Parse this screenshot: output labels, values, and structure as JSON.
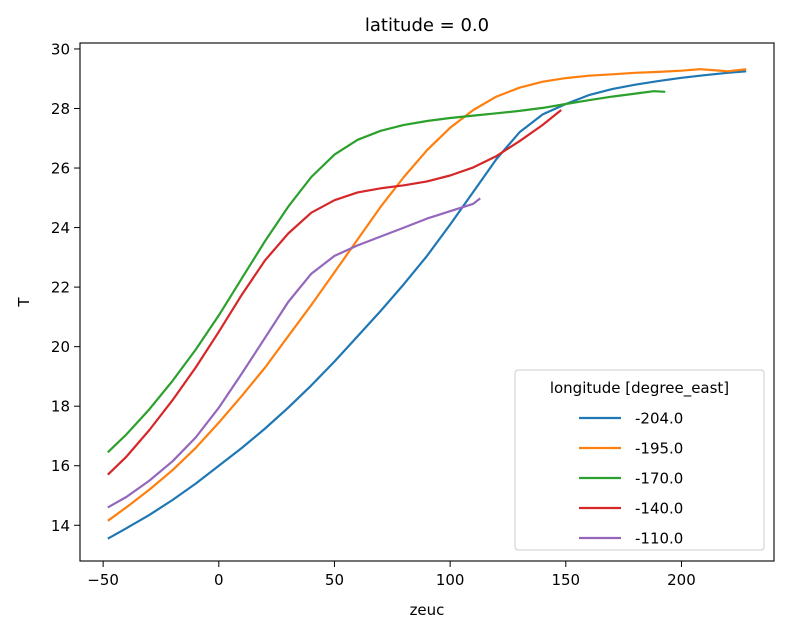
{
  "chart_data": {
    "type": "line",
    "title": "latitude = 0.0",
    "xlabel": "zeuc",
    "ylabel": "T",
    "xlim": [
      -60,
      240
    ],
    "ylim": [
      12.8,
      30.2
    ],
    "xticks": [
      -50,
      0,
      50,
      100,
      150,
      200
    ],
    "xtick_labels": [
      "−50",
      "0",
      "50",
      "100",
      "150",
      "200"
    ],
    "yticks": [
      14,
      16,
      18,
      20,
      22,
      24,
      26,
      28,
      30
    ],
    "ytick_labels": [
      "14",
      "16",
      "18",
      "20",
      "22",
      "24",
      "26",
      "28",
      "30"
    ],
    "grid": false,
    "legend": {
      "title": "longitude [degree_east]",
      "placement": "lower-right"
    },
    "series": [
      {
        "name": "-204.0",
        "color": "#1f77b4",
        "x": [
          -48,
          -40,
          -30,
          -20,
          -10,
          0,
          10,
          20,
          30,
          40,
          50,
          60,
          70,
          80,
          90,
          100,
          110,
          120,
          130,
          140,
          150,
          160,
          170,
          180,
          190,
          200,
          210,
          220,
          228
        ],
        "y": [
          13.55,
          13.9,
          14.35,
          14.85,
          15.4,
          16.0,
          16.6,
          17.25,
          17.95,
          18.7,
          19.5,
          20.35,
          21.2,
          22.1,
          23.05,
          24.1,
          25.2,
          26.3,
          27.2,
          27.8,
          28.15,
          28.45,
          28.65,
          28.8,
          28.92,
          29.03,
          29.12,
          29.2,
          29.25
        ]
      },
      {
        "name": "-195.0",
        "color": "#ff7f0e",
        "x": [
          -48,
          -40,
          -30,
          -20,
          -10,
          0,
          10,
          20,
          30,
          40,
          50,
          60,
          70,
          80,
          90,
          100,
          110,
          120,
          130,
          140,
          150,
          160,
          170,
          180,
          190,
          200,
          208,
          215,
          220,
          228
        ],
        "y": [
          14.15,
          14.6,
          15.2,
          15.85,
          16.6,
          17.45,
          18.35,
          19.3,
          20.35,
          21.4,
          22.5,
          23.6,
          24.7,
          25.7,
          26.6,
          27.35,
          27.95,
          28.4,
          28.7,
          28.9,
          29.02,
          29.1,
          29.15,
          29.2,
          29.23,
          29.27,
          29.32,
          29.28,
          29.25,
          29.32
        ]
      },
      {
        "name": "-170.0",
        "color": "#2ca02c",
        "x": [
          -48,
          -40,
          -30,
          -20,
          -10,
          0,
          10,
          20,
          30,
          40,
          50,
          60,
          70,
          80,
          90,
          100,
          110,
          120,
          130,
          140,
          150,
          160,
          170,
          180,
          188,
          193
        ],
        "y": [
          16.45,
          17.05,
          17.9,
          18.85,
          19.9,
          21.05,
          22.3,
          23.55,
          24.7,
          25.7,
          26.45,
          26.95,
          27.25,
          27.45,
          27.58,
          27.68,
          27.76,
          27.84,
          27.92,
          28.02,
          28.15,
          28.28,
          28.4,
          28.5,
          28.58,
          28.56
        ]
      },
      {
        "name": "-140.0",
        "color": "#d62728",
        "x": [
          -48,
          -40,
          -30,
          -20,
          -10,
          0,
          10,
          20,
          30,
          40,
          50,
          60,
          70,
          80,
          90,
          100,
          110,
          120,
          130,
          140,
          148
        ],
        "y": [
          15.7,
          16.3,
          17.2,
          18.2,
          19.3,
          20.5,
          21.75,
          22.9,
          23.8,
          24.5,
          24.92,
          25.18,
          25.32,
          25.42,
          25.55,
          25.75,
          26.02,
          26.4,
          26.9,
          27.45,
          27.95
        ]
      },
      {
        "name": "-110.0",
        "color": "#9467bd",
        "x": [
          -48,
          -40,
          -30,
          -20,
          -10,
          0,
          10,
          20,
          30,
          40,
          50,
          60,
          70,
          80,
          90,
          100,
          110,
          113
        ],
        "y": [
          14.6,
          14.95,
          15.5,
          16.15,
          16.95,
          17.95,
          19.1,
          20.3,
          21.5,
          22.45,
          23.05,
          23.4,
          23.7,
          24.0,
          24.3,
          24.55,
          24.8,
          24.98
        ]
      }
    ]
  }
}
